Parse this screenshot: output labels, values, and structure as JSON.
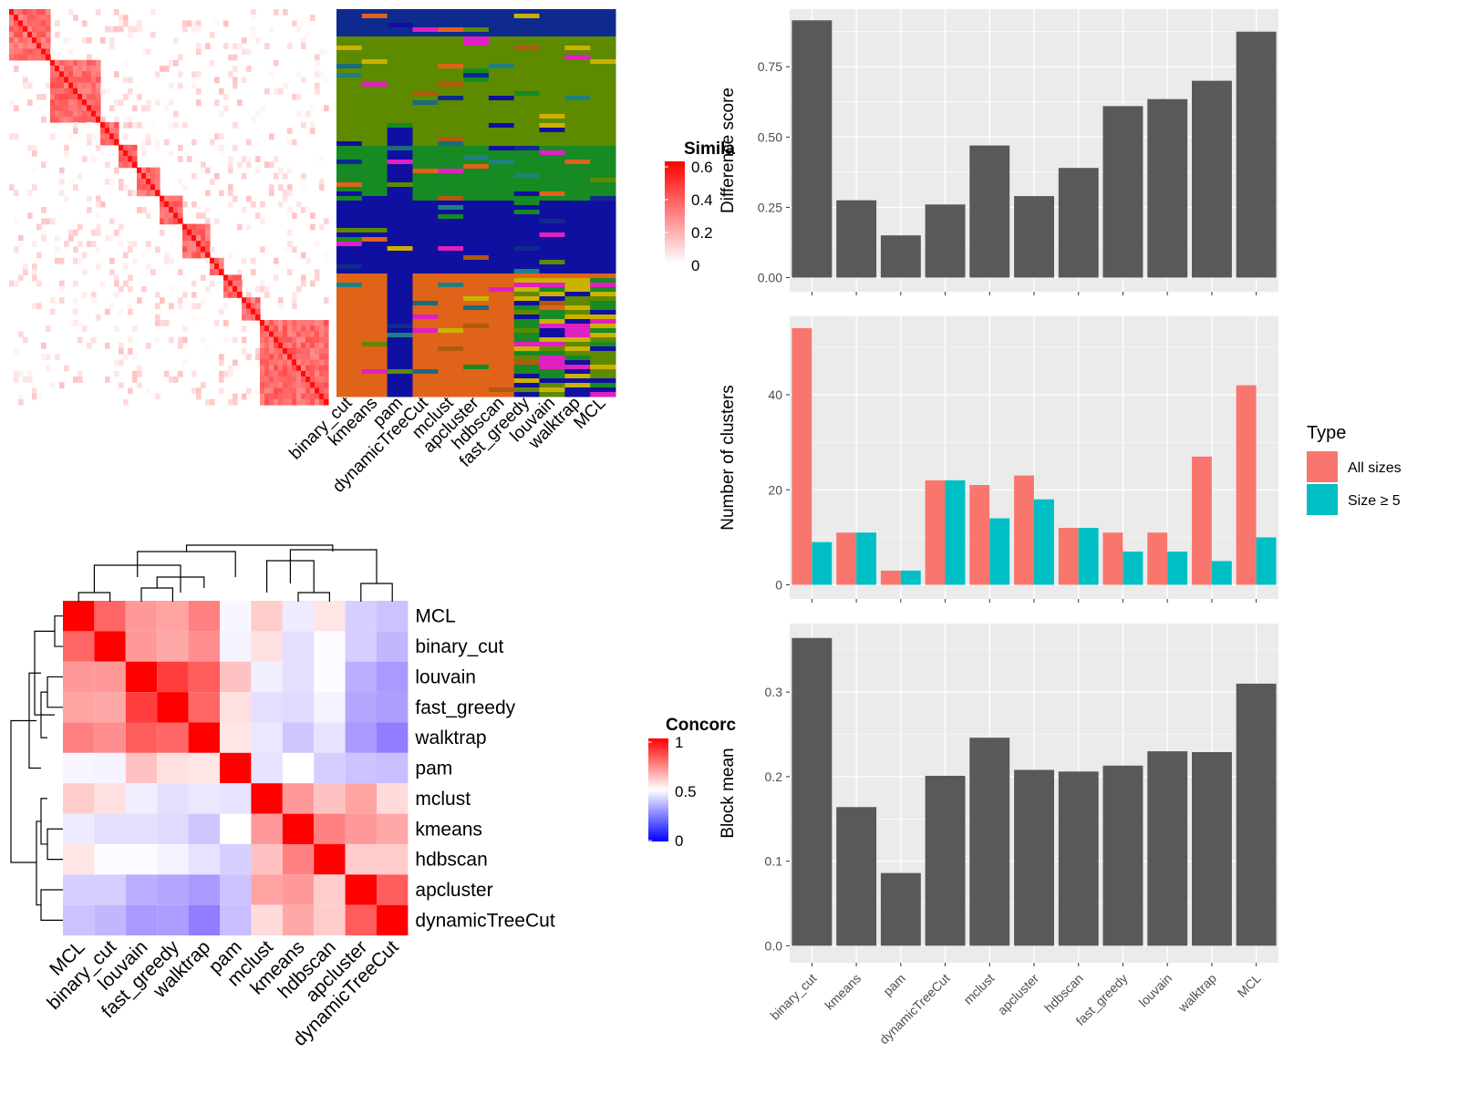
{
  "colors": {
    "panel_bg": "#ebebeb",
    "grid": "#ffffff",
    "bar_gray": "#595959",
    "all_sizes": "#f8766d",
    "size_ge5": "#00bfc4",
    "sim_high": "#ff0000",
    "cluster_palette": [
      "#0f2a8f",
      "#1010a0",
      "#5e8a00",
      "#178a24",
      "#e0631a",
      "#b05a10",
      "#cdb100",
      "#1b6b7a",
      "#e020c0",
      "#208080"
    ]
  },
  "similarity_legend": {
    "title": "Simila",
    "ticks": [
      "0.6",
      "0.4",
      "0.2",
      "0"
    ]
  },
  "concordance_legend": {
    "title": "Concorc",
    "ticks": [
      "1",
      "0.5",
      "0"
    ]
  },
  "methods_top": [
    "binary_cut",
    "kmeans",
    "pam",
    "dynamicTreeCut",
    "mclust",
    "apcluster",
    "hdbscan",
    "fast_greedy",
    "louvain",
    "walktrap",
    "MCL"
  ],
  "concordance_order": [
    "MCL",
    "binary_cut",
    "louvain",
    "fast_greedy",
    "walktrap",
    "pam",
    "mclust",
    "kmeans",
    "hdbscan",
    "apcluster",
    "dynamicTreeCut"
  ],
  "chart_data": [
    {
      "type": "heatmap",
      "name": "similarity",
      "legend_title": "Simila",
      "range": [
        0,
        0.6
      ]
    },
    {
      "type": "heatmap",
      "name": "cluster_assignments",
      "columns": [
        "binary_cut",
        "kmeans",
        "pam",
        "dynamicTreeCut",
        "mclust",
        "apcluster",
        "hdbscan",
        "fast_greedy",
        "louvain",
        "walktrap",
        "MCL"
      ]
    },
    {
      "type": "heatmap",
      "name": "concordance",
      "legend_title": "Concorc",
      "range": [
        0,
        1
      ],
      "rows": [
        "MCL",
        "binary_cut",
        "louvain",
        "fast_greedy",
        "walktrap",
        "pam",
        "mclust",
        "kmeans",
        "hdbscan",
        "apcluster",
        "dynamicTreeCut"
      ],
      "values": [
        [
          1.0,
          0.8,
          0.7,
          0.68,
          0.75,
          0.48,
          0.6,
          0.45,
          0.55,
          0.38,
          0.35
        ],
        [
          0.8,
          1.0,
          0.7,
          0.67,
          0.72,
          0.47,
          0.56,
          0.42,
          0.49,
          0.38,
          0.32
        ],
        [
          0.7,
          0.7,
          1.0,
          0.88,
          0.82,
          0.62,
          0.46,
          0.42,
          0.49,
          0.3,
          0.25
        ],
        [
          0.68,
          0.67,
          0.88,
          1.0,
          0.8,
          0.56,
          0.42,
          0.41,
          0.47,
          0.28,
          0.26
        ],
        [
          0.75,
          0.72,
          0.82,
          0.8,
          1.0,
          0.55,
          0.44,
          0.36,
          0.43,
          0.25,
          0.18
        ],
        [
          0.48,
          0.47,
          0.62,
          0.56,
          0.55,
          1.0,
          0.43,
          0.5,
          0.38,
          0.35,
          0.34
        ],
        [
          0.6,
          0.56,
          0.46,
          0.42,
          0.44,
          0.43,
          1.0,
          0.7,
          0.62,
          0.68,
          0.57
        ],
        [
          0.45,
          0.42,
          0.42,
          0.41,
          0.36,
          0.5,
          0.7,
          1.0,
          0.75,
          0.7,
          0.67
        ],
        [
          0.55,
          0.49,
          0.49,
          0.47,
          0.43,
          0.38,
          0.62,
          0.75,
          1.0,
          0.6,
          0.6
        ],
        [
          0.38,
          0.38,
          0.3,
          0.28,
          0.25,
          0.35,
          0.68,
          0.7,
          0.6,
          1.0,
          0.82
        ],
        [
          0.35,
          0.32,
          0.25,
          0.26,
          0.18,
          0.34,
          0.57,
          0.67,
          0.6,
          0.82,
          1.0
        ]
      ]
    },
    {
      "type": "bar",
      "name": "difference_score",
      "categories": [
        "binary_cut",
        "kmeans",
        "pam",
        "dynamicTreeCut",
        "mclust",
        "apcluster",
        "hdbscan",
        "fast_greedy",
        "louvain",
        "walktrap",
        "MCL"
      ],
      "values": [
        0.915,
        0.275,
        0.15,
        0.26,
        0.47,
        0.29,
        0.39,
        0.61,
        0.635,
        0.7,
        0.875
      ],
      "ylabel": "Difference score",
      "ylim": [
        0,
        0.955
      ],
      "yticks": [
        "0.00",
        "0.25",
        "0.50",
        "0.75"
      ],
      "grid": true
    },
    {
      "type": "bar",
      "name": "number_of_clusters",
      "categories": [
        "binary_cut",
        "kmeans",
        "pam",
        "dynamicTreeCut",
        "mclust",
        "apcluster",
        "hdbscan",
        "fast_greedy",
        "louvain",
        "walktrap",
        "MCL"
      ],
      "series": [
        {
          "name": "All sizes",
          "values": [
            54,
            11,
            3,
            22,
            21,
            23,
            12,
            11,
            11,
            27,
            42
          ]
        },
        {
          "name": "Size ≥ 5",
          "values": [
            9,
            11,
            3,
            22,
            14,
            18,
            12,
            7,
            7,
            5,
            10
          ]
        }
      ],
      "ylabel": "Number of clusters",
      "ylim": [
        0,
        56.5
      ],
      "yticks": [
        "0",
        "20",
        "40"
      ],
      "legend_title": "Type",
      "legend_position": "right",
      "grid": true
    },
    {
      "type": "bar",
      "name": "block_mean",
      "categories": [
        "binary_cut",
        "kmeans",
        "pam",
        "dynamicTreeCut",
        "mclust",
        "apcluster",
        "hdbscan",
        "fast_greedy",
        "louvain",
        "walktrap",
        "MCL"
      ],
      "values": [
        0.364,
        0.164,
        0.086,
        0.201,
        0.246,
        0.208,
        0.206,
        0.213,
        0.23,
        0.229,
        0.31
      ],
      "ylabel": "Block mean",
      "ylim": [
        0,
        0.381
      ],
      "yticks": [
        "0.0",
        "0.1",
        "0.2",
        "0.3"
      ],
      "grid": true
    }
  ]
}
